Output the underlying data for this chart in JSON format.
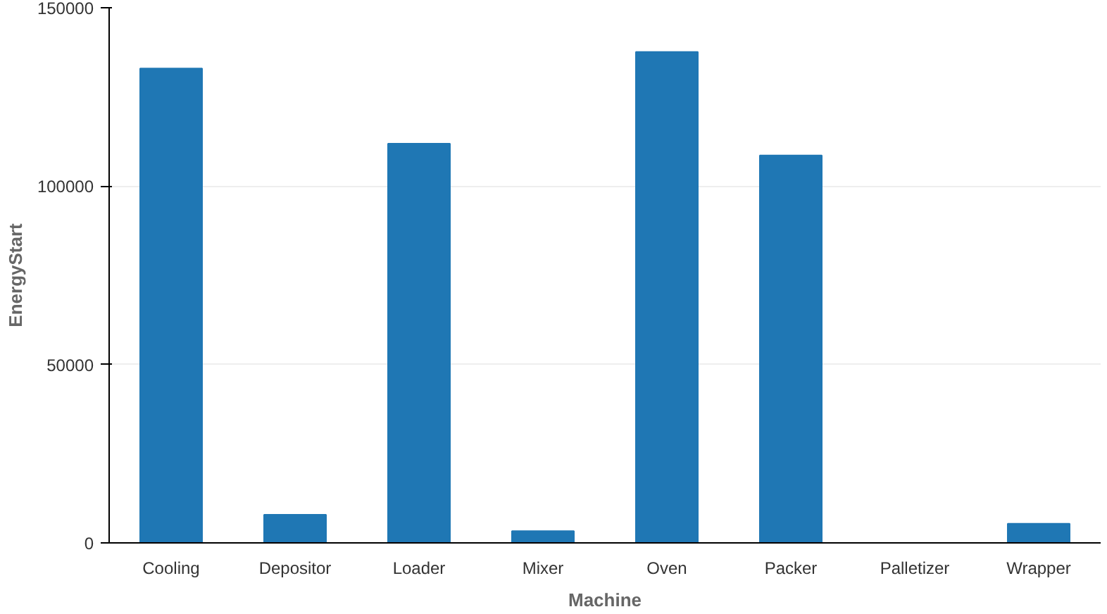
{
  "chart_data": {
    "type": "bar",
    "xlabel": "Machine",
    "ylabel": "EnergyStart",
    "categories": [
      "Cooling",
      "Depositor",
      "Loader",
      "Mixer",
      "Oven",
      "Packer",
      "Palletizer",
      "Wrapper"
    ],
    "values": [
      133000,
      7900,
      111900,
      3300,
      137600,
      108600,
      0,
      5400
    ],
    "color": "#1f77b4",
    "ylim": [
      0,
      150000
    ],
    "yticks": [
      0,
      50000,
      100000,
      150000
    ],
    "grid": "y"
  }
}
